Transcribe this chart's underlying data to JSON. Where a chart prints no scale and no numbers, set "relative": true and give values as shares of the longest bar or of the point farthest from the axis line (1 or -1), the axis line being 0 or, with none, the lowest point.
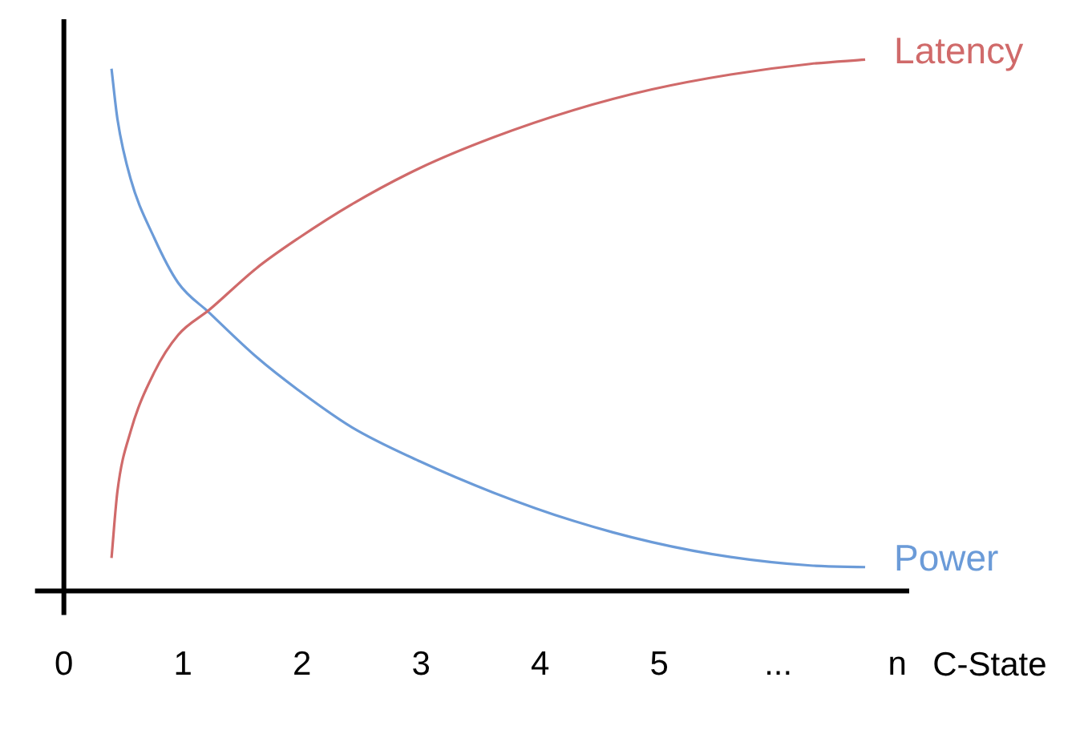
{
  "chart_data": {
    "type": "line",
    "relative": true,
    "xlabel": "C-State",
    "marker": "none",
    "legend": false,
    "grid": false,
    "xlim": [
      0,
      7.1
    ],
    "xticks": [
      0,
      1,
      2,
      3,
      4,
      5,
      {
        "value": 6,
        "label": "..."
      },
      {
        "value": 7,
        "label": "n"
      }
    ],
    "series": [
      {
        "name": "Latency",
        "color": "#d06a6a",
        "x": [
          0.4,
          0.45,
          0.56,
          0.76,
          0.96,
          1.22,
          1.62,
          1.97,
          2.42,
          2.99,
          3.61,
          4.28,
          4.94,
          5.6,
          6.27,
          6.73
        ],
        "values": [
          0.062,
          0.188,
          0.3,
          0.412,
          0.482,
          0.529,
          0.608,
          0.664,
          0.728,
          0.796,
          0.854,
          0.905,
          0.944,
          0.972,
          0.992,
          1
        ]
      },
      {
        "name": "Power",
        "color": "#6b9bd8",
        "x": [
          0.4,
          0.45,
          0.56,
          0.76,
          0.96,
          1.22,
          1.62,
          1.97,
          2.42,
          2.99,
          3.61,
          4.28,
          4.94,
          5.6,
          6.27,
          6.73
        ],
        "values": [
          0.983,
          0.888,
          0.776,
          0.664,
          0.58,
          0.524,
          0.44,
          0.378,
          0.308,
          0.244,
          0.185,
          0.132,
          0.092,
          0.064,
          0.048,
          0.045
        ]
      }
    ]
  }
}
